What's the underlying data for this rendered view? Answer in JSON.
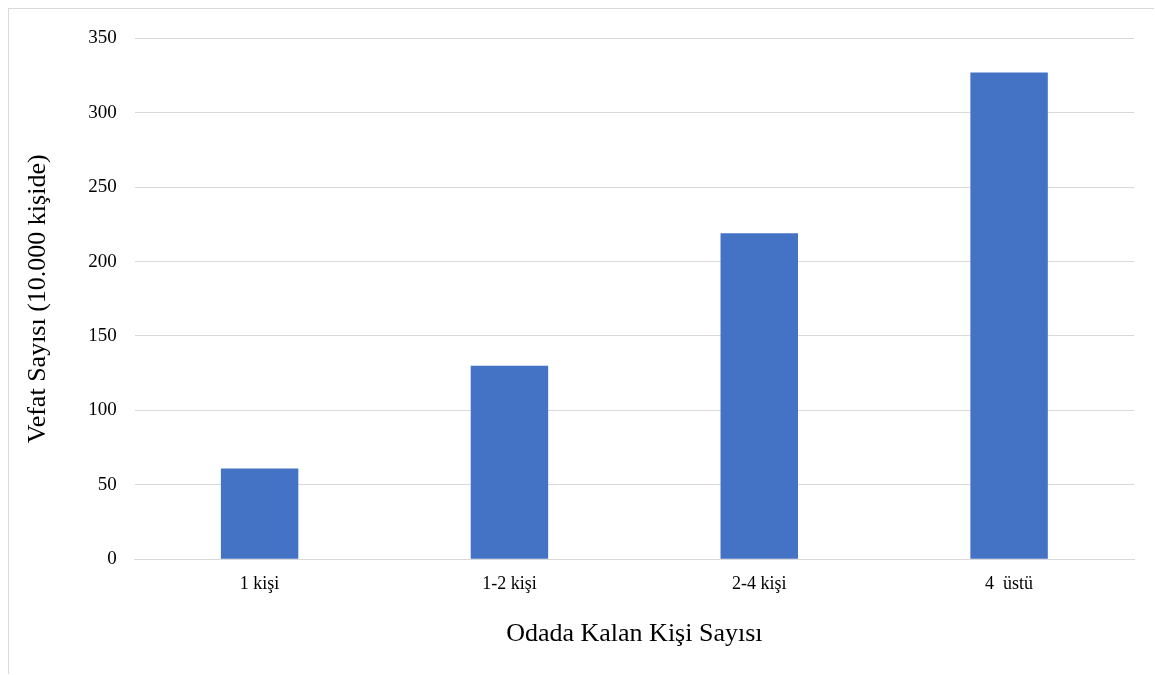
{
  "chart_data": {
    "type": "bar",
    "xlabel": "Odada Kalan Kişi Sayısı",
    "ylabel": "Vefat Sayısı (10.000 kişide)",
    "categories": [
      "1 kişi",
      "1-2 kişi",
      "2-4 kişi",
      "4  üstü"
    ],
    "values": [
      61,
      130,
      219,
      327
    ],
    "color": "#4472c4",
    "ylim": [
      0,
      350
    ],
    "yticks": [
      0,
      50,
      100,
      150,
      200,
      250,
      300,
      350
    ],
    "grid": "y",
    "legend": false
  }
}
